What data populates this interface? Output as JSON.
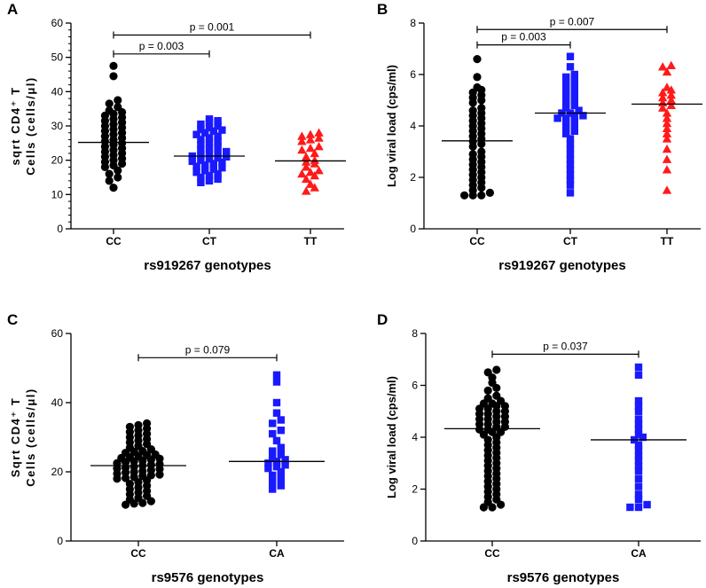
{
  "colors": {
    "CC": "#000000",
    "CT": "#1a1aff",
    "CA": "#1a1aff",
    "TT": "#ff1a1a"
  },
  "chart_data": [
    {
      "panel": "A",
      "type": "scatter",
      "xlabel": "rs919267 genotypes",
      "ylabel_line1": "sqrt CD4⁺ T",
      "ylabel_line2": "Cells (cells/μl)",
      "ylim": [
        0,
        60
      ],
      "yticks": [
        0,
        10,
        20,
        30,
        40,
        50,
        60
      ],
      "ytick_labels": [
        "0",
        "10",
        "20",
        "30",
        "40",
        "50",
        "60"
      ],
      "minor_step": 2,
      "categories": [
        "CC",
        "CT",
        "TT"
      ],
      "markers": [
        "circle",
        "square",
        "triangle"
      ],
      "series": [
        {
          "name": "CC",
          "median": 25.2,
          "values": [
            47.5,
            44.5,
            37.5,
            36.5,
            35.5,
            34.5,
            34,
            33.5,
            33,
            32.5,
            32,
            31.5,
            31,
            30.5,
            30,
            29.5,
            29,
            28.5,
            28,
            27.5,
            27,
            26.5,
            26,
            25.5,
            25,
            24.5,
            24,
            23.5,
            23,
            22.5,
            22,
            21.5,
            21,
            20.5,
            20,
            19.5,
            19,
            18.5,
            18,
            17,
            16,
            15,
            14,
            12
          ]
        },
        {
          "name": "CT",
          "median": 21.2,
          "values": [
            32,
            31.5,
            31,
            30.5,
            30,
            29.5,
            29,
            28.8,
            28.5,
            28,
            27.5,
            27,
            26.5,
            26,
            25.5,
            25,
            24.5,
            24,
            23.5,
            23,
            22.5,
            22,
            21.8,
            21.5,
            21.2,
            21,
            20.7,
            20.4,
            20,
            19.7,
            19.4,
            19,
            18.6,
            18.2,
            17.8,
            17.4,
            17,
            16.5,
            16,
            15.5,
            15,
            14.5,
            14,
            13.5
          ]
        },
        {
          "name": "TT",
          "median": 19.8,
          "values": [
            28,
            27.5,
            27,
            26.5,
            26,
            25.5,
            24,
            23.5,
            23,
            22,
            21,
            20,
            19.5,
            19,
            18,
            17,
            16.5,
            16,
            15.5,
            14.5,
            13,
            12,
            11
          ]
        }
      ],
      "comparisons": [
        {
          "from": "CC",
          "to": "CT",
          "label": "p = 0.003",
          "y": 51
        },
        {
          "from": "CC",
          "to": "TT",
          "label": "p = 0.001",
          "y": 56.5
        }
      ]
    },
    {
      "panel": "B",
      "type": "scatter",
      "xlabel": "rs919267 genotypes",
      "ylabel": "Log viral load (cps/ml)",
      "ylim": [
        0,
        8
      ],
      "yticks": [
        0,
        2,
        4,
        6,
        8
      ],
      "ytick_labels": [
        "0",
        "2",
        "4",
        "6",
        "8"
      ],
      "minor_step": 0,
      "categories": [
        "CC",
        "CT",
        "TT"
      ],
      "markers": [
        "circle",
        "square",
        "triangle"
      ],
      "series": [
        {
          "name": "CC",
          "median": 3.42,
          "values": [
            6.6,
            5.9,
            5.5,
            5.4,
            5.3,
            5.2,
            5.1,
            5.0,
            4.9,
            4.7,
            4.6,
            4.5,
            4.4,
            4.3,
            4.2,
            4.1,
            4.0,
            3.9,
            3.8,
            3.7,
            3.6,
            3.5,
            3.4,
            3.3,
            3.2,
            3.0,
            2.9,
            2.8,
            2.7,
            2.6,
            2.5,
            2.4,
            2.3,
            2.2,
            2.1,
            2.0,
            1.9,
            1.8,
            1.7,
            1.6,
            1.5,
            1.4,
            1.3,
            1.3,
            1.3
          ]
        },
        {
          "name": "CT",
          "median": 4.5,
          "values": [
            6.7,
            6.3,
            6.0,
            5.9,
            5.8,
            5.7,
            5.6,
            5.5,
            5.4,
            5.3,
            5.2,
            5.1,
            5.0,
            4.9,
            4.8,
            4.7,
            4.6,
            4.5,
            4.5,
            4.4,
            4.4,
            4.3,
            4.3,
            4.2,
            4.1,
            4.0,
            3.9,
            3.8,
            3.7,
            3.5,
            3.3,
            3.1,
            2.9,
            2.7,
            2.5,
            2.3,
            2.1,
            1.9,
            1.7,
            1.4
          ]
        },
        {
          "name": "TT",
          "median": 4.85,
          "values": [
            6.35,
            6.3,
            6.1,
            5.5,
            5.4,
            5.3,
            5.2,
            5.1,
            5.0,
            4.9,
            4.8,
            4.7,
            4.5,
            4.3,
            4.1,
            3.9,
            3.7,
            3.5,
            3.1,
            2.7,
            2.3,
            1.5
          ]
        }
      ],
      "comparisons": [
        {
          "from": "CC",
          "to": "CT",
          "label": "p = 0.003",
          "y": 7.15
        },
        {
          "from": "CC",
          "to": "TT",
          "label": "p = 0.007",
          "y": 7.75
        }
      ]
    },
    {
      "panel": "C",
      "type": "scatter",
      "xlabel": "rs9576 genotypes",
      "ylabel_line1": "Sqrt CD4⁺ T",
      "ylabel_line2": "Cells (cells/μl)",
      "ylim": [
        0,
        60
      ],
      "yticks": [
        0,
        20,
        40,
        60
      ],
      "ytick_labels": [
        "0",
        "20",
        "40",
        "60"
      ],
      "minor_step": 0,
      "categories": [
        "CC",
        "CA"
      ],
      "markers": [
        "circle",
        "square"
      ],
      "series": [
        {
          "name": "CC",
          "median": 21.8,
          "values": [
            34,
            33.5,
            33,
            32.5,
            32,
            31.5,
            31,
            30.5,
            30,
            29.5,
            29,
            28.5,
            28,
            27.5,
            27,
            26.5,
            26,
            25.8,
            25.5,
            25,
            24.8,
            24.5,
            24.2,
            24,
            23.8,
            23.5,
            23.2,
            23,
            22.8,
            22.5,
            22.2,
            22,
            21.8,
            21.5,
            21.2,
            21,
            20.8,
            20.5,
            20.2,
            20,
            19.8,
            19.5,
            19.2,
            19,
            18.8,
            18.5,
            18.2,
            18,
            17.5,
            17,
            16.5,
            16,
            15.5,
            15,
            14.5,
            14,
            13.5,
            13,
            12.5,
            12,
            11.5,
            11,
            10.8,
            10.5
          ]
        },
        {
          "name": "CA",
          "median": 23,
          "values": [
            48,
            46,
            40,
            37,
            35,
            34,
            32,
            31,
            29,
            27,
            26,
            25,
            24,
            23.5,
            23,
            22.5,
            22,
            21.5,
            21,
            20,
            19,
            18,
            17,
            16,
            15
          ]
        }
      ],
      "comparisons": [
        {
          "from": "CC",
          "to": "CA",
          "label": "p = 0.079",
          "y": 53
        }
      ]
    },
    {
      "panel": "D",
      "type": "scatter",
      "xlabel": "rs9576 genotypes",
      "ylabel": "Log viral load (cps/ml)",
      "ylim": [
        0,
        8
      ],
      "yticks": [
        0,
        2,
        4,
        6,
        8
      ],
      "ytick_labels": [
        "0",
        "2",
        "4",
        "6",
        "8"
      ],
      "minor_step": 0,
      "categories": [
        "CC",
        "CA"
      ],
      "markers": [
        "circle",
        "square"
      ],
      "series": [
        {
          "name": "CC",
          "median": 4.33,
          "values": [
            6.6,
            6.5,
            6.3,
            6.1,
            5.9,
            5.8,
            5.6,
            5.5,
            5.4,
            5.3,
            5.3,
            5.2,
            5.2,
            5.1,
            5.1,
            5.0,
            5.0,
            4.9,
            4.9,
            4.8,
            4.8,
            4.7,
            4.7,
            4.6,
            4.6,
            4.5,
            4.5,
            4.4,
            4.4,
            4.3,
            4.3,
            4.2,
            4.2,
            4.1,
            4.0,
            3.9,
            3.8,
            3.7,
            3.6,
            3.5,
            3.4,
            3.3,
            3.2,
            3.1,
            3.0,
            2.9,
            2.8,
            2.7,
            2.6,
            2.5,
            2.4,
            2.3,
            2.2,
            2.1,
            2.0,
            1.9,
            1.8,
            1.7,
            1.6,
            1.5,
            1.4,
            1.3,
            1.3
          ]
        },
        {
          "name": "CA",
          "median": 3.9,
          "values": [
            6.7,
            6.4,
            5.4,
            5.2,
            5.0,
            4.7,
            4.5,
            4.3,
            4.1,
            4.0,
            3.9,
            3.7,
            3.5,
            3.3,
            3.1,
            2.9,
            2.7,
            2.4,
            2.1,
            1.8,
            1.6,
            1.4,
            1.3,
            1.3
          ]
        }
      ],
      "comparisons": [
        {
          "from": "CC",
          "to": "CA",
          "label": "p = 0.037",
          "y": 7.2
        }
      ]
    }
  ]
}
